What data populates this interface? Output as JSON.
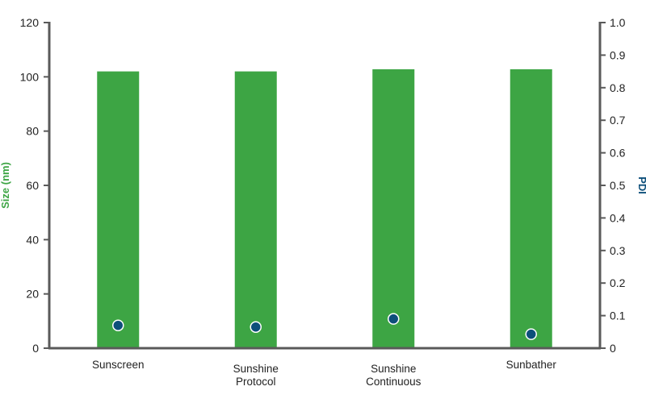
{
  "chart_data": {
    "type": "bar",
    "title": "",
    "xlabel": "",
    "categories": [
      [
        "Sunscreen"
      ],
      [
        "Sunshine",
        "Protocol"
      ],
      [
        "Sunshine",
        "Continuous"
      ],
      [
        "Sunbather"
      ]
    ],
    "y_left": {
      "label": "Size (nm)",
      "lim": [
        0,
        120
      ],
      "ticks": [
        "0",
        "20",
        "40",
        "60",
        "80",
        "100",
        "120"
      ]
    },
    "y_right": {
      "label": "PDI",
      "lim": [
        0,
        1.0
      ],
      "ticks": [
        "0",
        "0.1",
        "0.2",
        "0.3",
        "0.4",
        "0.5",
        "0.6",
        "0.7",
        "0.8",
        "0.9",
        "1.0"
      ]
    },
    "series": [
      {
        "kind": "bar",
        "axis": "left",
        "values": [
          102,
          102,
          102.8,
          102.8
        ]
      },
      {
        "kind": "scatter",
        "axis": "right",
        "values": [
          0.07,
          0.065,
          0.09,
          0.043
        ]
      }
    ],
    "grid": false,
    "legend": "none",
    "colors": {
      "bar": "#3da544",
      "marker": "#0d4f7a",
      "marker_outline": "#ffffff",
      "axis": "#5a5a5a",
      "y_left_title": "#3da544",
      "y_right_title": "#0d4f7a"
    }
  }
}
